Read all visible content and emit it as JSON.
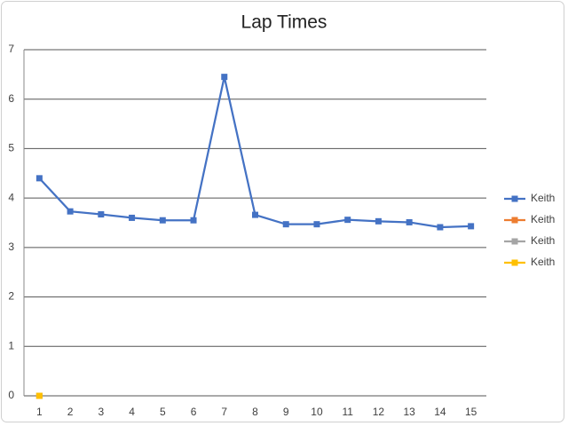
{
  "chart_data": {
    "type": "line",
    "title": "Lap Times",
    "categories": [
      1,
      2,
      3,
      4,
      5,
      6,
      7,
      8,
      9,
      10,
      11,
      12,
      13,
      14,
      15
    ],
    "series": [
      {
        "name": "Keith",
        "color": "#4472c4",
        "values": [
          4.4,
          3.73,
          3.67,
          3.6,
          3.55,
          3.55,
          6.45,
          3.66,
          3.47,
          3.47,
          3.56,
          3.53,
          3.51,
          3.41,
          3.43
        ]
      },
      {
        "name": "Keith",
        "color": "#ed7d31",
        "values": [
          0,
          null,
          null,
          null,
          null,
          null,
          null,
          null,
          null,
          null,
          null,
          null,
          null,
          null,
          null
        ]
      },
      {
        "name": "Keith",
        "color": "#a5a5a5",
        "values": [
          0,
          null,
          null,
          null,
          null,
          null,
          null,
          null,
          null,
          null,
          null,
          null,
          null,
          null,
          null
        ]
      },
      {
        "name": "Keith",
        "color": "#ffc000",
        "values": [
          0,
          null,
          null,
          null,
          null,
          null,
          null,
          null,
          null,
          null,
          null,
          null,
          null,
          null,
          null
        ]
      }
    ],
    "ylim": [
      0,
      7
    ],
    "yticks": [
      0,
      1,
      2,
      3,
      4,
      5,
      6,
      7
    ],
    "grid": true,
    "legend": "right"
  }
}
